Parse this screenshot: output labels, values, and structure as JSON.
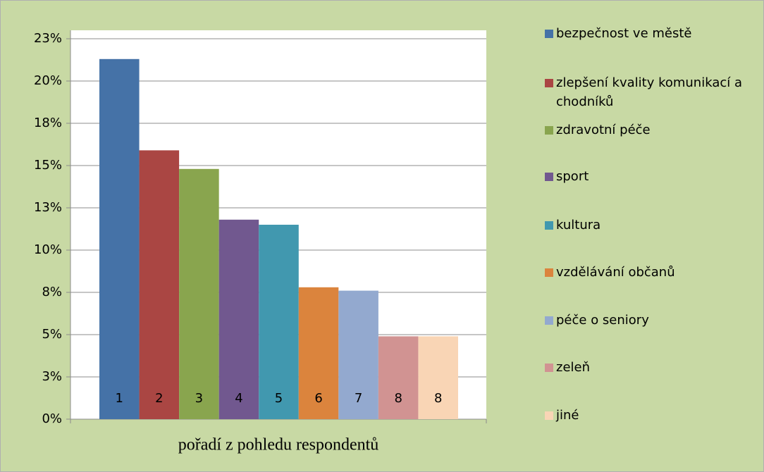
{
  "chart_data": {
    "type": "bar",
    "x_label": "pořadí z pohledu respondentů",
    "ylim": [
      0,
      23
    ],
    "yticks": [
      {
        "value": 0,
        "label": "0%"
      },
      {
        "value": 2.5,
        "label": "3%"
      },
      {
        "value": 5,
        "label": "5%"
      },
      {
        "value": 7.5,
        "label": "8%"
      },
      {
        "value": 10,
        "label": "10%"
      },
      {
        "value": 12.5,
        "label": "13%"
      },
      {
        "value": 15,
        "label": "15%"
      },
      {
        "value": 17.5,
        "label": "18%"
      },
      {
        "value": 20,
        "label": "20%"
      },
      {
        "value": 22.5,
        "label": "23%"
      }
    ],
    "grid": true,
    "legend": "right",
    "series": [
      {
        "name": "bezpečnost ve městě",
        "color": "#4572a7",
        "category": "1",
        "value": 21.3
      },
      {
        "name": "zlepšení kvality komunikací a chodníků",
        "color": "#aa4643",
        "category": "2",
        "value": 15.9
      },
      {
        "name": "zdravotní péče",
        "color": "#89a54e",
        "category": "3",
        "value": 14.8
      },
      {
        "name": "sport",
        "color": "#71588f",
        "category": "4",
        "value": 11.8
      },
      {
        "name": "kultura",
        "color": "#4198af",
        "category": "5",
        "value": 11.5
      },
      {
        "name": "vzdělávání občanů",
        "color": "#db843d",
        "category": "6",
        "value": 7.8
      },
      {
        "name": "péče o seniory",
        "color": "#93a9cf",
        "category": "7",
        "value": 7.6
      },
      {
        "name": "zeleň",
        "color": "#d19392",
        "category": "8",
        "value": 4.9
      },
      {
        "name": "jiné",
        "color": "#f9d5b5",
        "category": "8",
        "value": 4.9
      }
    ]
  }
}
